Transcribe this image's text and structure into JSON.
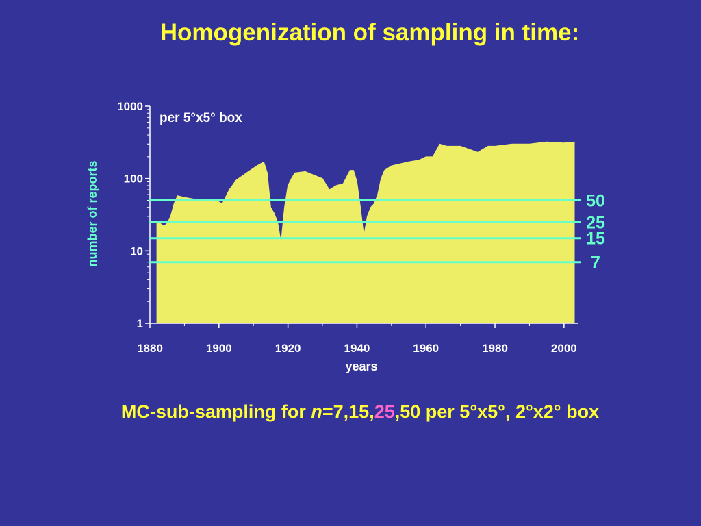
{
  "slide": {
    "title": "Homogenization of sampling in time:",
    "caption": {
      "prefix": "MC-sub-sampling for ",
      "n_var": "n",
      "eq_part": "=7,15,",
      "highlight": "25",
      "suffix": ",50 per 5°x5°, 2°x2° box"
    }
  },
  "colors": {
    "background": "#333399",
    "title": "#ffff33",
    "axis_text": "#ffffff",
    "ylabel": "#66ffcc",
    "bars": "#eeee66",
    "threshold_lines": "#66ffcc",
    "caption_highlight": "#ff66cc"
  },
  "chart_data": {
    "type": "area",
    "annotation": "per 5°x5° box",
    "xlabel": "years",
    "ylabel": "number of reports",
    "xlim": [
      1880,
      2004
    ],
    "ylim": [
      1,
      1000
    ],
    "y_scale": "log",
    "x_ticks": [
      1880,
      1900,
      1920,
      1940,
      1960,
      1980,
      2000
    ],
    "y_ticks": [
      {
        "value": 1,
        "label": "1"
      },
      {
        "value": 10,
        "label": "10"
      },
      {
        "value": 100,
        "label": "100"
      },
      {
        "value": 1000,
        "label": "1000"
      }
    ],
    "series": [
      {
        "x": [
          1882,
          1883,
          1884,
          1885,
          1886,
          1887,
          1888,
          1890,
          1893,
          1896,
          1899,
          1901,
          1903,
          1905,
          1908,
          1911,
          1913,
          1914,
          1915,
          1916,
          1917,
          1918,
          1919,
          1920,
          1921,
          1922,
          1925,
          1930,
          1932,
          1933,
          1934,
          1936,
          1938,
          1939,
          1940,
          1941,
          1942,
          1943,
          1944,
          1945,
          1946,
          1947,
          1948,
          1950,
          1955,
          1958,
          1960,
          1962,
          1964,
          1966,
          1970,
          1975,
          1978,
          1980,
          1985,
          1990,
          1995,
          2000,
          2003
        ],
        "y": [
          25,
          24,
          22,
          24,
          30,
          45,
          58,
          55,
          52,
          52,
          50,
          45,
          70,
          95,
          120,
          150,
          170,
          120,
          40,
          33,
          25,
          13,
          40,
          80,
          100,
          120,
          125,
          100,
          70,
          75,
          80,
          85,
          130,
          130,
          90,
          40,
          16,
          30,
          40,
          45,
          60,
          100,
          130,
          150,
          170,
          180,
          200,
          200,
          300,
          280,
          280,
          230,
          280,
          280,
          300,
          300,
          320,
          310,
          320
        ]
      }
    ],
    "thresholds": [
      {
        "value": 50,
        "label": "50"
      },
      {
        "value": 25,
        "label": "25"
      },
      {
        "value": 15,
        "label": "15"
      },
      {
        "value": 7,
        "label": "7"
      }
    ]
  }
}
